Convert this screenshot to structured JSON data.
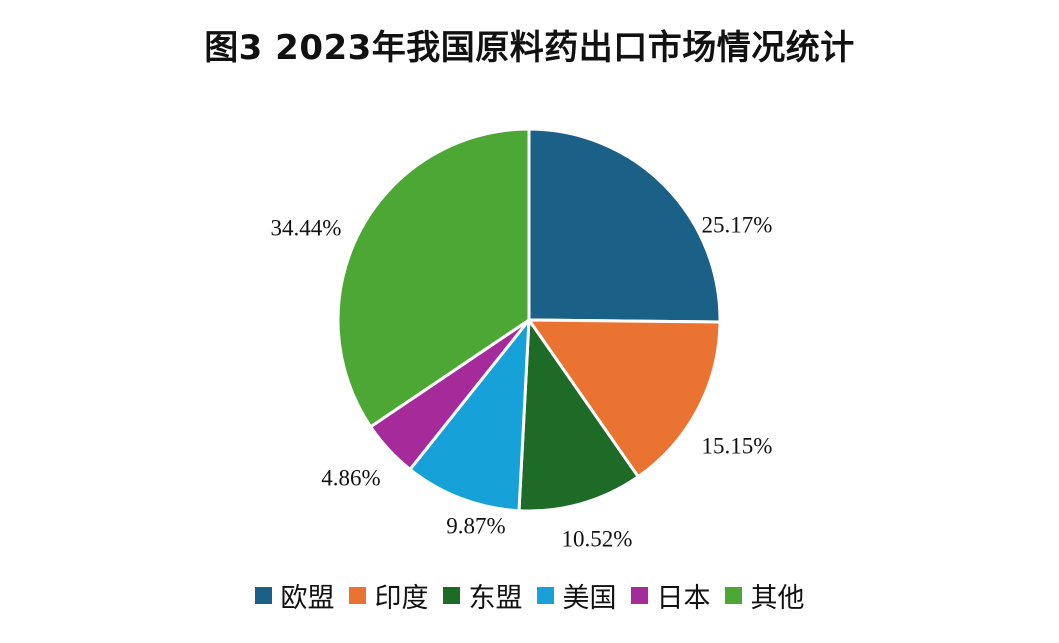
{
  "chart_data": {
    "type": "pie",
    "title": "图3  2023年我国原料药出口市场情况统计",
    "legend_position": "bottom",
    "slices": [
      {
        "name": "欧盟",
        "value": 25.17,
        "label": "25.17%",
        "color": "#1a6087"
      },
      {
        "name": "印度",
        "value": 15.15,
        "label": "15.15%",
        "color": "#ea7332"
      },
      {
        "name": "东盟",
        "value": 10.52,
        "label": "10.52%",
        "color": "#1d6b27"
      },
      {
        "name": "美国",
        "value": 9.87,
        "label": "9.87%",
        "color": "#16a1d9"
      },
      {
        "name": "日本",
        "value": 4.86,
        "label": "4.86%",
        "color": "#a52a9a"
      },
      {
        "name": "其他",
        "value": 34.44,
        "label": "34.44%",
        "color": "#4ca734"
      }
    ]
  }
}
